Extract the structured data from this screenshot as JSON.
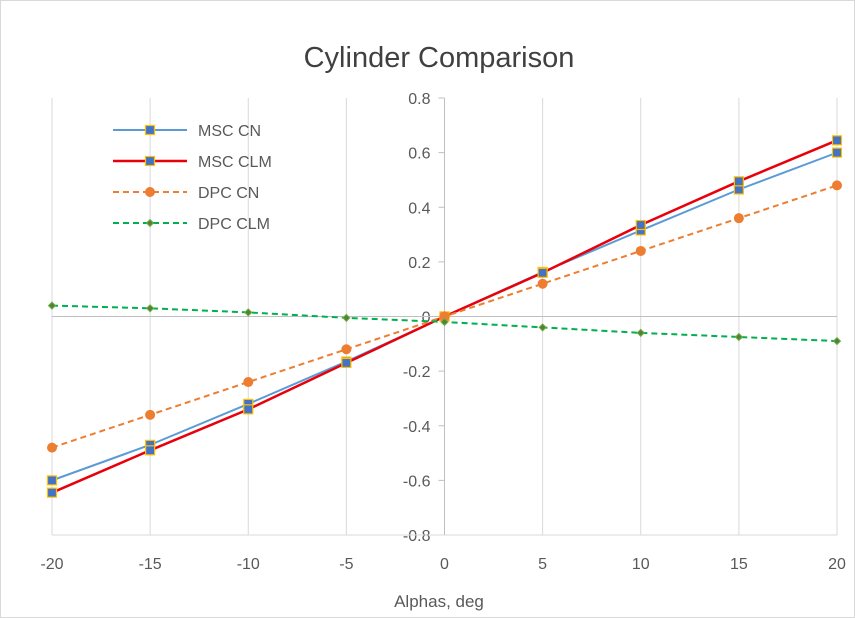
{
  "chart_data": {
    "type": "line",
    "title": "Cylinder Comparison",
    "xlabel": "Alphas, deg",
    "ylabel": "",
    "x": [
      -20,
      -15,
      -10,
      -5,
      0,
      5,
      10,
      15,
      20
    ],
    "xlim": [
      -20,
      20
    ],
    "ylim": [
      -0.8,
      0.8
    ],
    "x_ticks": [
      "-20",
      "-15",
      "-10",
      "-5",
      "0",
      "5",
      "10",
      "15",
      "20"
    ],
    "y_ticks": [
      "-0.8",
      "-0.6",
      "-0.4",
      "-0.2",
      "0",
      "0.2",
      "0.4",
      "0.6",
      "0.8"
    ],
    "grid": "vertical",
    "legend_position": "top-left",
    "series": [
      {
        "name": "MSC CN",
        "values": [
          -0.6,
          -0.47,
          -0.32,
          -0.165,
          0,
          0.163,
          0.315,
          0.465,
          0.6
        ],
        "color": "#5b9bd5",
        "line": "solid",
        "marker": "square"
      },
      {
        "name": "MSC CLM",
        "values": [
          -0.645,
          -0.49,
          -0.34,
          -0.17,
          0,
          0.16,
          0.335,
          0.495,
          0.645
        ],
        "color": "#e8000b",
        "line": "solid",
        "marker": "square"
      },
      {
        "name": "DPC CN",
        "values": [
          -0.48,
          -0.36,
          -0.24,
          -0.12,
          0,
          0.12,
          0.24,
          0.36,
          0.48
        ],
        "color": "#ed7d31",
        "line": "dashed",
        "marker": "circle"
      },
      {
        "name": "DPC CLM",
        "values": [
          0.04,
          0.03,
          0.015,
          -0.005,
          -0.02,
          -0.04,
          -0.06,
          -0.075,
          -0.09
        ],
        "color": "#00b050",
        "line": "dashed",
        "marker": "diamond"
      }
    ]
  }
}
